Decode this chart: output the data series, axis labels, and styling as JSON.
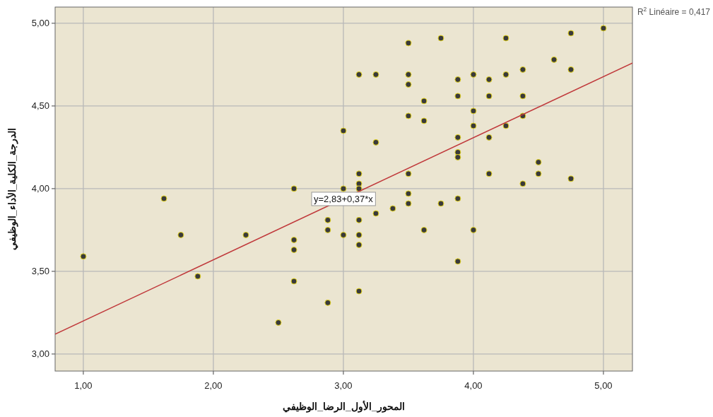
{
  "chart_data": {
    "type": "scatter",
    "xlabel": "المحور_الأول_الرضا_الوظيفي",
    "ylabel": "الدرجة_الكلية_الأداء_الوظيفي",
    "xlim": [
      0.783,
      5.223
    ],
    "ylim": [
      2.897,
      5.098
    ],
    "xticks": [
      {
        "value": 1,
        "label": "1,00"
      },
      {
        "value": 2,
        "label": "2,00"
      },
      {
        "value": 3,
        "label": "3,00"
      },
      {
        "value": 4,
        "label": "4,00"
      },
      {
        "value": 5,
        "label": "5,00"
      }
    ],
    "yticks": [
      {
        "value": 3,
        "label": "3,00"
      },
      {
        "value": 3.5,
        "label": "3,50"
      },
      {
        "value": 4,
        "label": "4,00"
      },
      {
        "value": 4.5,
        "label": "4,50"
      },
      {
        "value": 5,
        "label": "5,00"
      }
    ],
    "grid": true,
    "series": [
      {
        "marker": "circle",
        "color": "#3a3a3a",
        "x": [
          1.0,
          1.62,
          1.75,
          1.88,
          2.25,
          2.5,
          2.62,
          2.62,
          2.62,
          2.62,
          2.88,
          2.88,
          2.88,
          3.0,
          3.0,
          3.0,
          3.12,
          3.12,
          3.12,
          3.12,
          3.12,
          3.12,
          3.12,
          3.12,
          3.25,
          3.25,
          3.25,
          3.38,
          3.5,
          3.5,
          3.5,
          3.5,
          3.5,
          3.5,
          3.5,
          3.62,
          3.62,
          3.62,
          3.75,
          3.75,
          3.88,
          3.88,
          3.88,
          3.88,
          3.88,
          3.88,
          3.88,
          4.0,
          4.0,
          4.0,
          4.0,
          4.12,
          4.12,
          4.12,
          4.12,
          4.25,
          4.25,
          4.25,
          4.38,
          4.38,
          4.38,
          4.38,
          4.5,
          4.5,
          4.62,
          4.75,
          4.75,
          4.75,
          5.0
        ],
        "values": [
          3.59,
          3.94,
          3.72,
          3.47,
          3.72,
          3.19,
          4.0,
          3.69,
          3.63,
          3.44,
          3.81,
          3.75,
          3.31,
          4.35,
          4.0,
          3.72,
          4.69,
          4.09,
          4.03,
          4.0,
          3.81,
          3.72,
          3.66,
          3.38,
          4.69,
          4.28,
          3.85,
          3.88,
          4.88,
          4.69,
          4.63,
          4.44,
          4.09,
          3.97,
          3.91,
          4.53,
          4.41,
          3.75,
          4.91,
          3.91,
          4.66,
          4.56,
          4.31,
          4.22,
          4.19,
          3.94,
          3.56,
          4.69,
          4.47,
          4.38,
          3.75,
          4.66,
          4.56,
          4.31,
          4.09,
          4.91,
          4.69,
          4.38,
          4.72,
          4.56,
          4.44,
          4.03,
          4.16,
          4.09,
          4.78,
          4.94,
          4.72,
          4.06,
          4.97
        ]
      },
      {
        "type": "line",
        "color": "#c0393b",
        "x": [
          0.783,
          5.223
        ],
        "values": [
          3.12,
          4.76
        ]
      }
    ],
    "annotations": [
      {
        "text": "y=2,83+0,37*x",
        "x": 3.0,
        "y": 3.94
      },
      "R$^{2}$ Linéaire = 0,417"
    ]
  }
}
